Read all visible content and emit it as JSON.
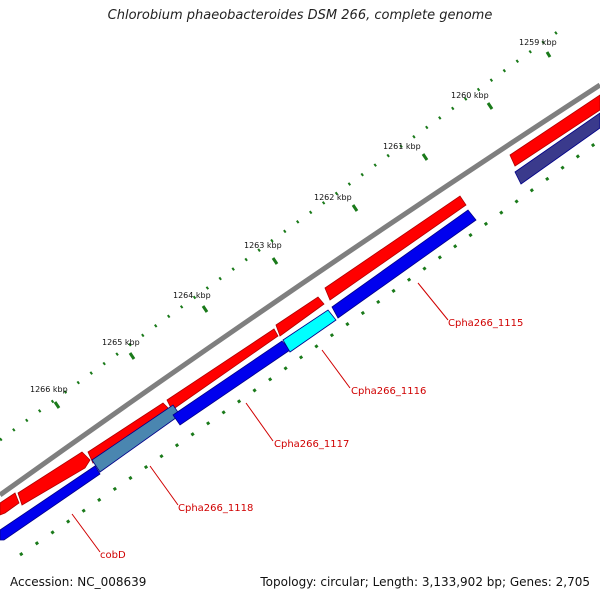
{
  "title": "Chlorobium phaeobacteroides DSM 266, complete genome",
  "accession": "Accession: NC_008639",
  "summary": "Topology: circular; Length: 3,133,902 bp; Genes: 2,705",
  "tick_labels": [
    "1259 kbp",
    "1260 kbp",
    "1261 kbp",
    "1262 kbp",
    "1263 kbp",
    "1264 kbp",
    "1265 kbp",
    "1266 kbp"
  ],
  "gene_labels": [
    "Cpha266_1115",
    "Cpha266_1116",
    "Cpha266_1117",
    "Cpha266_1118",
    "cobD"
  ],
  "colors": {
    "backbone": "#7f7f7f",
    "forward_gene": "#ff0000",
    "reverse_gene": "#0000ee",
    "reverse_gene_dark": "#3a3a8c",
    "highlight_cyan": "#00ffff",
    "highlight_steel": "#4a86b0",
    "tick": "#1a7a1a",
    "label": "#d00000"
  }
}
